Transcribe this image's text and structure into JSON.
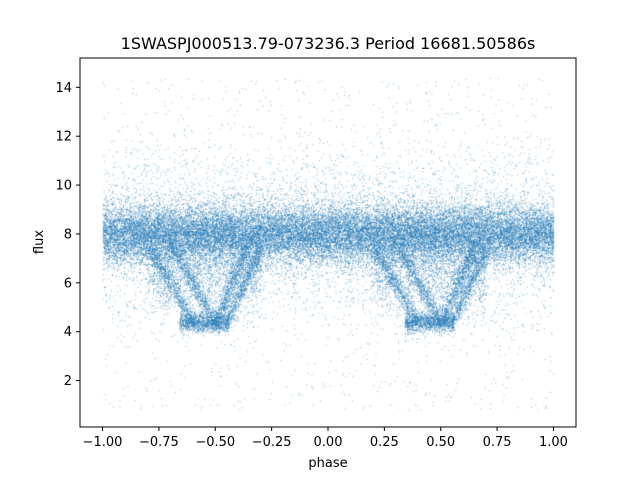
{
  "chart_data": {
    "type": "scatter",
    "title": "1SWASPJ000513.79-073236.3 Period 16681.50586s",
    "xlabel": "phase",
    "ylabel": "flux",
    "xlim": [
      -1.1,
      1.1
    ],
    "ylim": [
      0.1,
      15.2
    ],
    "x_ticks": [
      -1.0,
      -0.75,
      -0.5,
      -0.25,
      0.0,
      0.25,
      0.5,
      0.75,
      1.0
    ],
    "x_tick_labels": [
      "−1.00",
      "−0.75",
      "−0.50",
      "−0.25",
      "0.00",
      "0.25",
      "0.50",
      "0.75",
      "1.00"
    ],
    "y_ticks": [
      2,
      4,
      6,
      8,
      10,
      12,
      14
    ],
    "y_tick_labels": [
      "2",
      "4",
      "6",
      "8",
      "10",
      "12",
      "14"
    ],
    "grid": false,
    "marker_color": "#1f77b4",
    "point_count_estimate": 40000,
    "series_features": {
      "x_range": [
        -1.0,
        1.0
      ],
      "main_band": {
        "flux_center": 8.0,
        "flux_spread": 0.6
      },
      "sparse_outliers": {
        "flux_range": [
          0.8,
          14.4
        ]
      },
      "eclipse_minimum": {
        "phase_centers": [
          -0.55,
          0.45
        ],
        "flux": 4.4
      },
      "eclipse_branches": [
        {
          "phase": [
            -0.8,
            -0.6
          ],
          "flux": [
            7.5,
            4.4
          ]
        },
        {
          "phase": [
            -0.7,
            -0.5
          ],
          "flux": [
            7.6,
            4.4
          ]
        },
        {
          "phase": [
            -0.5,
            -0.35
          ],
          "flux": [
            4.4,
            7.6
          ]
        },
        {
          "phase": [
            -0.45,
            -0.3
          ],
          "flux": [
            4.4,
            7.4
          ]
        },
        {
          "phase": [
            0.2,
            0.4
          ],
          "flux": [
            7.5,
            4.4
          ]
        },
        {
          "phase": [
            0.3,
            0.5
          ],
          "flux": [
            7.6,
            4.4
          ]
        },
        {
          "phase": [
            0.5,
            0.65
          ],
          "flux": [
            4.4,
            7.6
          ]
        },
        {
          "phase": [
            0.55,
            0.7
          ],
          "flux": [
            4.4,
            7.4
          ]
        }
      ]
    }
  }
}
